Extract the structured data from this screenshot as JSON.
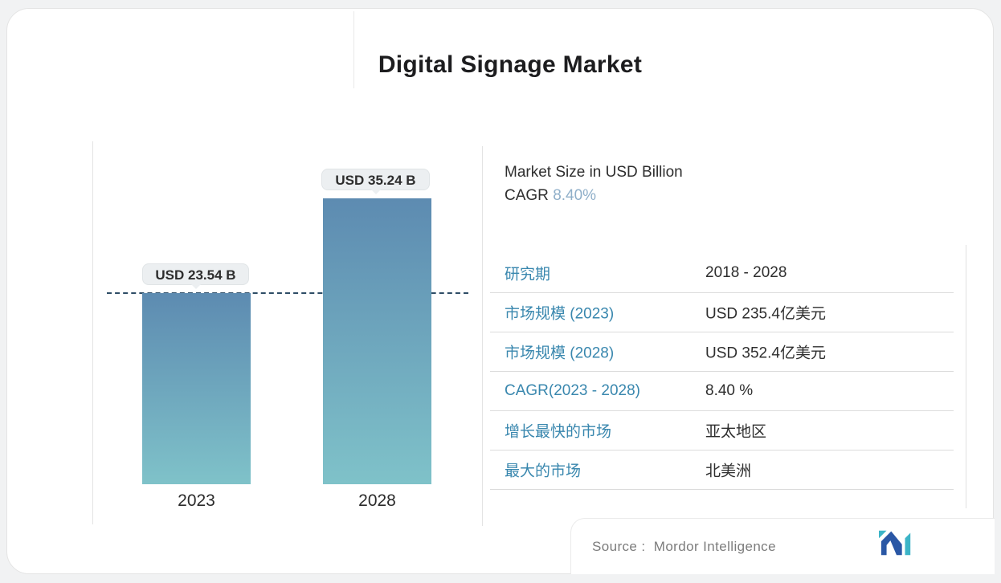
{
  "page": {
    "title": "Digital Signage Market",
    "background_color": "#f1f2f3",
    "card_background": "#ffffff"
  },
  "chart": {
    "subtitle_line1": "Market Size in USD Billion",
    "cagr_label": "CAGR",
    "cagr_value": "8.40%"
  },
  "chart_data": {
    "type": "bar",
    "title": "Digital Signage Market",
    "ylabel": "Market Size in USD Billion",
    "categories": [
      "2023",
      "2028"
    ],
    "values": [
      23.54,
      35.24
    ],
    "value_labels": [
      "USD 23.54 B",
      "USD 35.24 B"
    ],
    "unit": "USD Billion",
    "cagr": "8.40%",
    "reference_line": {
      "value": 23.54,
      "style": "dashed",
      "color": "#2e4d66"
    },
    "bar_gradient_top": "#5d8bb1",
    "bar_gradient_bottom": "#7fc2c9",
    "grid": false,
    "legend": false
  },
  "table": {
    "label_color": "#3987ae",
    "rows": [
      {
        "label": "研究期",
        "value": "2018 - 2028"
      },
      {
        "label": "市场规模 (2023)",
        "value": "USD 235.4亿美元"
      },
      {
        "label": "市场规模 (2028)",
        "value": "USD 352.4亿美元"
      },
      {
        "label": "CAGR(2023 - 2028)",
        "value": "8.40 %"
      },
      {
        "label": "增长最快的市场",
        "value": "亚太地区"
      },
      {
        "label": "最大的市场",
        "value": "北美洲"
      }
    ]
  },
  "footer": {
    "source_label": "Source :",
    "source_value": "Mordor Intelligence",
    "logo": "mordor-intelligence-logo",
    "logo_navy": "#2a57a5",
    "logo_teal": "#3cb4c7"
  }
}
